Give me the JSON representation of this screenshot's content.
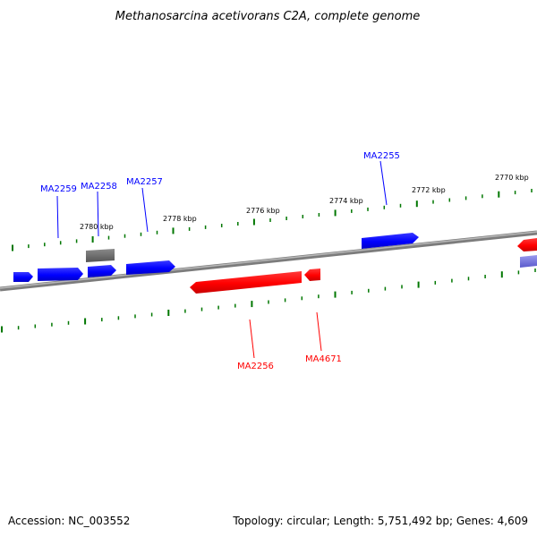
{
  "title": "Methanosarcina acetivorans C2A, complete genome",
  "footer": {
    "accession": "Accession: NC_003552",
    "topology": "Topology: circular; Length: 5,751,492 bp; Genes: 4,609"
  },
  "scale_labels": [
    "2780 kbp",
    "2778 kbp",
    "2776 kbp",
    "2774 kbp",
    "2772 kbp",
    "2770 kbp"
  ],
  "genes_forward": [
    "MA2259",
    "MA2258",
    "MA2257",
    "MA2255"
  ],
  "genes_reverse": [
    "MA2256",
    "MA4671"
  ],
  "colors": {
    "forward": "#0000ff",
    "reverse": "#ff0000",
    "other": "#6e6e6e",
    "backbone": "#808080",
    "ticks": "#007700"
  }
}
